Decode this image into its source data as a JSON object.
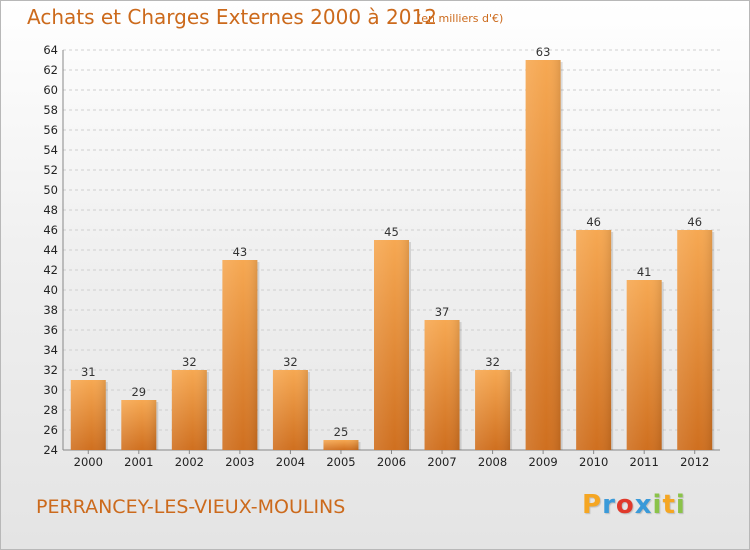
{
  "page": {
    "title": "Achats et Charges Externes 2000 à 2012",
    "unit_note": "(en milliers d'€)",
    "place_name": "PERRANCEY-LES-VIEUX-MOULINS",
    "brand": "Proxiti",
    "brand_colors": [
      "#f5a623",
      "#3a9ad9",
      "#e0392b",
      "#3a9ad9",
      "#8bc34a",
      "#f5a623",
      "#8bc34a"
    ]
  },
  "chart_data": {
    "type": "bar",
    "title": "Achats et Charges Externes 2000 à 2012",
    "subtitle": "(en milliers d'€)",
    "xlabel": "",
    "ylabel": "",
    "categories": [
      "2000",
      "2001",
      "2002",
      "2003",
      "2004",
      "2005",
      "2006",
      "2007",
      "2008",
      "2009",
      "2010",
      "2011",
      "2012"
    ],
    "values": [
      31,
      29,
      32,
      43,
      32,
      25,
      45,
      37,
      32,
      63,
      46,
      41,
      46
    ],
    "ylim": [
      24,
      64
    ],
    "yticks": [
      24,
      26,
      28,
      30,
      32,
      34,
      36,
      38,
      40,
      42,
      44,
      46,
      48,
      50,
      52,
      54,
      56,
      58,
      60,
      62,
      64
    ],
    "grid": true,
    "legend": "none",
    "bar_color": "#f0a050",
    "bar_color_dark": "#cc6a1c"
  }
}
